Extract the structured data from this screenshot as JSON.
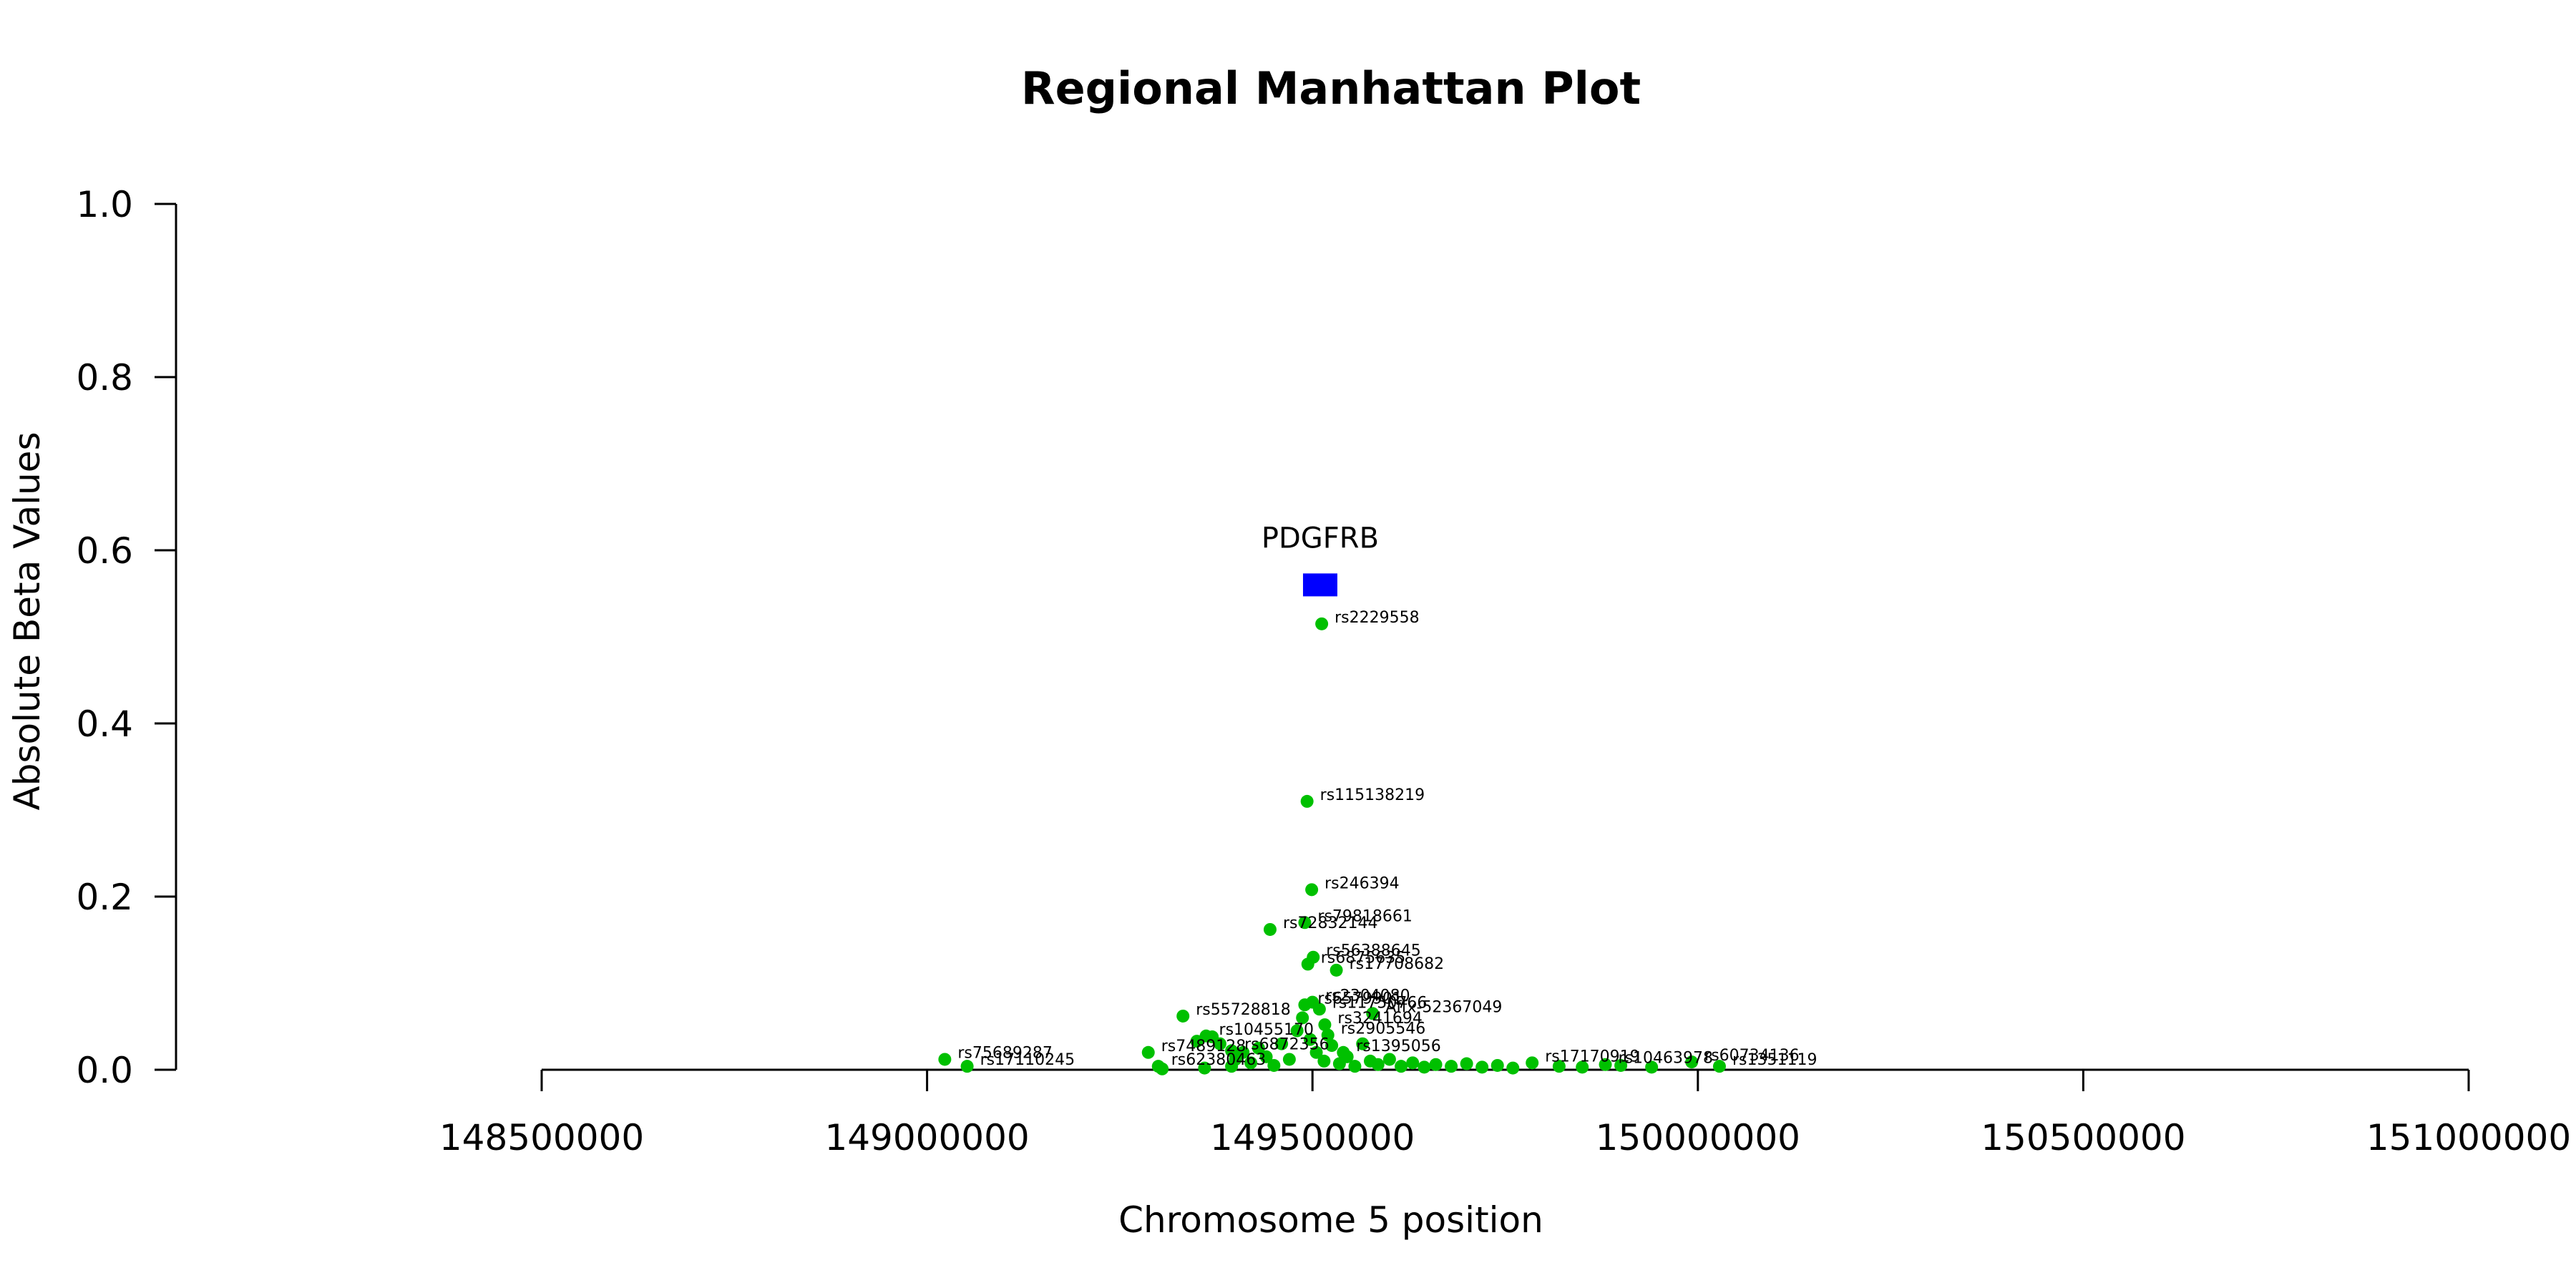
{
  "chart_data": {
    "type": "scatter",
    "title": "Regional Manhattan Plot",
    "xlabel": "Chromosome 5 position",
    "ylabel": "Absolute Beta Values",
    "xlim": [
      148500000,
      151000000
    ],
    "ylim": [
      0,
      1
    ],
    "x_ticks": [
      "148500000",
      "149000000",
      "149500000",
      "150000000",
      "150500000",
      "151000000"
    ],
    "y_ticks": [
      "0.0",
      "0.2",
      "0.4",
      "0.6",
      "0.8",
      "1.0"
    ],
    "grid": false,
    "point_color": "#00c000",
    "gene": {
      "name": "PDGFRB",
      "x": 149510000,
      "y": 0.56,
      "color": "#0000ff"
    },
    "points": [
      {
        "label": "rs2229558",
        "x": 149512000,
        "y": 0.515
      },
      {
        "label": "rs115138219",
        "x": 149493000,
        "y": 0.31
      },
      {
        "label": "rs246394",
        "x": 149499000,
        "y": 0.208
      },
      {
        "label": "rs79818661",
        "x": 149490000,
        "y": 0.17
      },
      {
        "label": "rs72832144",
        "x": 149445000,
        "y": 0.162
      },
      {
        "label": "rs56388645",
        "x": 149501000,
        "y": 0.13
      },
      {
        "label": "rs6875635",
        "x": 149494000,
        "y": 0.122
      },
      {
        "label": "rs17708682",
        "x": 149531000,
        "y": 0.115
      },
      {
        "label": "rs55728818",
        "x": 149332000,
        "y": 0.062
      },
      {
        "label": "rs2304080",
        "x": 149500000,
        "y": 0.078
      },
      {
        "label": "rs6579901",
        "x": 149490000,
        "y": 0.075
      },
      {
        "label": "rs11750766",
        "x": 149509000,
        "y": 0.07
      },
      {
        "label": "Affx-52367049",
        "x": 149578000,
        "y": 0.065
      },
      {
        "label": "rs3241694",
        "x": 149516000,
        "y": 0.052
      },
      {
        "label": "rs10455170",
        "x": 149362000,
        "y": 0.039
      },
      {
        "label": "rs2905546",
        "x": 149520000,
        "y": 0.04
      },
      {
        "label": "rs7489128",
        "x": 149287000,
        "y": 0.02
      },
      {
        "label": "rs6872356",
        "x": 149395000,
        "y": 0.022
      },
      {
        "label": "rs1395056",
        "x": 149540000,
        "y": 0.02
      },
      {
        "label": "rs75689287",
        "x": 149023000,
        "y": 0.012
      },
      {
        "label": "rs17110245",
        "x": 149052000,
        "y": 0.004
      },
      {
        "label": "rs62380463",
        "x": 149300000,
        "y": 0.004
      },
      {
        "label": "rs17170919",
        "x": 149785000,
        "y": 0.008
      },
      {
        "label": "rs10463978",
        "x": 149880000,
        "y": 0.006
      },
      {
        "label": "rs60734136",
        "x": 149992000,
        "y": 0.009
      },
      {
        "label": "rs1351119",
        "x": 150028000,
        "y": 0.004
      }
    ],
    "unlabeled_points": [
      {
        "x": 149350000,
        "y": 0.033
      },
      {
        "x": 149370000,
        "y": 0.038
      },
      {
        "x": 149380000,
        "y": 0.03
      },
      {
        "x": 149400000,
        "y": 0.012
      },
      {
        "x": 149410000,
        "y": 0.02
      },
      {
        "x": 149420000,
        "y": 0.008
      },
      {
        "x": 149430000,
        "y": 0.025
      },
      {
        "x": 149440000,
        "y": 0.015
      },
      {
        "x": 149450000,
        "y": 0.005
      },
      {
        "x": 149460000,
        "y": 0.03
      },
      {
        "x": 149470000,
        "y": 0.012
      },
      {
        "x": 149480000,
        "y": 0.045
      },
      {
        "x": 149487000,
        "y": 0.06
      },
      {
        "x": 149497000,
        "y": 0.035
      },
      {
        "x": 149505000,
        "y": 0.02
      },
      {
        "x": 149515000,
        "y": 0.01
      },
      {
        "x": 149525000,
        "y": 0.028
      },
      {
        "x": 149535000,
        "y": 0.007
      },
      {
        "x": 149545000,
        "y": 0.015
      },
      {
        "x": 149555000,
        "y": 0.004
      },
      {
        "x": 149565000,
        "y": 0.03
      },
      {
        "x": 149575000,
        "y": 0.01
      },
      {
        "x": 149585000,
        "y": 0.006
      },
      {
        "x": 149600000,
        "y": 0.012
      },
      {
        "x": 149615000,
        "y": 0.004
      },
      {
        "x": 149630000,
        "y": 0.008
      },
      {
        "x": 149645000,
        "y": 0.003
      },
      {
        "x": 149660000,
        "y": 0.006
      },
      {
        "x": 149680000,
        "y": 0.004
      },
      {
        "x": 149700000,
        "y": 0.007
      },
      {
        "x": 149720000,
        "y": 0.003
      },
      {
        "x": 149740000,
        "y": 0.005
      },
      {
        "x": 149760000,
        "y": 0.002
      },
      {
        "x": 149820000,
        "y": 0.004
      },
      {
        "x": 149850000,
        "y": 0.003
      },
      {
        "x": 149900000,
        "y": 0.005
      },
      {
        "x": 149940000,
        "y": 0.003
      },
      {
        "x": 149360000,
        "y": 0.002
      },
      {
        "x": 149395000,
        "y": 0.004
      },
      {
        "x": 149305000,
        "y": 0.001
      }
    ]
  }
}
